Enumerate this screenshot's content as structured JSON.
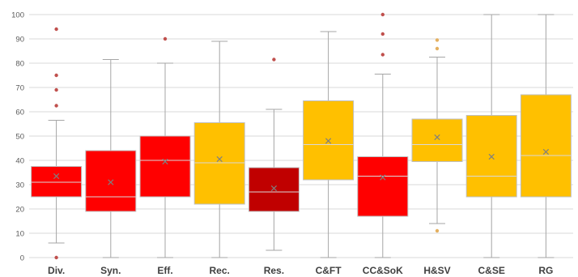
{
  "chart_data": {
    "type": "box",
    "title": "",
    "xlabel": "",
    "ylabel": "",
    "ylim": [
      0,
      100
    ],
    "yticks": [
      0,
      10,
      20,
      30,
      40,
      50,
      60,
      70,
      80,
      90,
      100
    ],
    "grid": true,
    "legend": "none",
    "categories": [
      "Div.",
      "Syn.",
      "Eff.",
      "Rec.",
      "Res.",
      "C&FT",
      "CC&SoK",
      "H&SV",
      "C&SE",
      "RG"
    ],
    "boxes": [
      {
        "category": "Div.",
        "min": 6,
        "q1": 25,
        "median": 31,
        "q3": 37.5,
        "max": 56.5,
        "mean": 33.5,
        "outliers": [
          0,
          62.5,
          69,
          75,
          94
        ],
        "color": "#ff0000"
      },
      {
        "category": "Syn.",
        "min": 0,
        "q1": 19,
        "median": 25,
        "q3": 44,
        "max": 81.5,
        "mean": 31,
        "outliers": [],
        "color": "#ff0000"
      },
      {
        "category": "Eff.",
        "min": 0,
        "q1": 25,
        "median": 40,
        "q3": 50,
        "max": 80,
        "mean": 39.5,
        "outliers": [
          90
        ],
        "color": "#ff0000"
      },
      {
        "category": "Rec.",
        "min": 0,
        "q1": 22,
        "median": 39,
        "q3": 55.5,
        "max": 89,
        "mean": 40.5,
        "outliers": [],
        "color": "#ffc000"
      },
      {
        "category": "Res.",
        "min": 3,
        "q1": 19,
        "median": 27,
        "q3": 37,
        "max": 61,
        "mean": 28.5,
        "outliers": [
          81.5
        ],
        "color": "#c00000"
      },
      {
        "category": "C&FT",
        "min": 0,
        "q1": 32,
        "median": 46.5,
        "q3": 64.5,
        "max": 93,
        "mean": 48,
        "outliers": [],
        "color": "#ffc000"
      },
      {
        "category": "CC&SoK",
        "min": 0,
        "q1": 17,
        "median": 33.5,
        "q3": 41.5,
        "max": 75.5,
        "mean": 33,
        "outliers": [
          83.5,
          92,
          100
        ],
        "color": "#ff0000"
      },
      {
        "category": "H&SV",
        "min": 14,
        "q1": 39.5,
        "median": 46.5,
        "q3": 57,
        "max": 82.5,
        "mean": 49.5,
        "outliers": [
          11,
          86,
          89.5
        ],
        "color": "#ffc000"
      },
      {
        "category": "C&SE",
        "min": 0,
        "q1": 25,
        "median": 33.5,
        "q3": 58.5,
        "max": 100,
        "mean": 41.5,
        "outliers": [],
        "color": "#ffc000"
      },
      {
        "category": "RG",
        "min": 0,
        "q1": 25,
        "median": 42,
        "q3": 67,
        "max": 100,
        "mean": 43.5,
        "outliers": [],
        "color": "#ffc000"
      }
    ],
    "colors": {
      "red": "#ff0000",
      "dark_red": "#c00000",
      "amber": "#ffc000",
      "red_outlier": "#c0504d",
      "amber_outlier": "#e4b060"
    }
  }
}
